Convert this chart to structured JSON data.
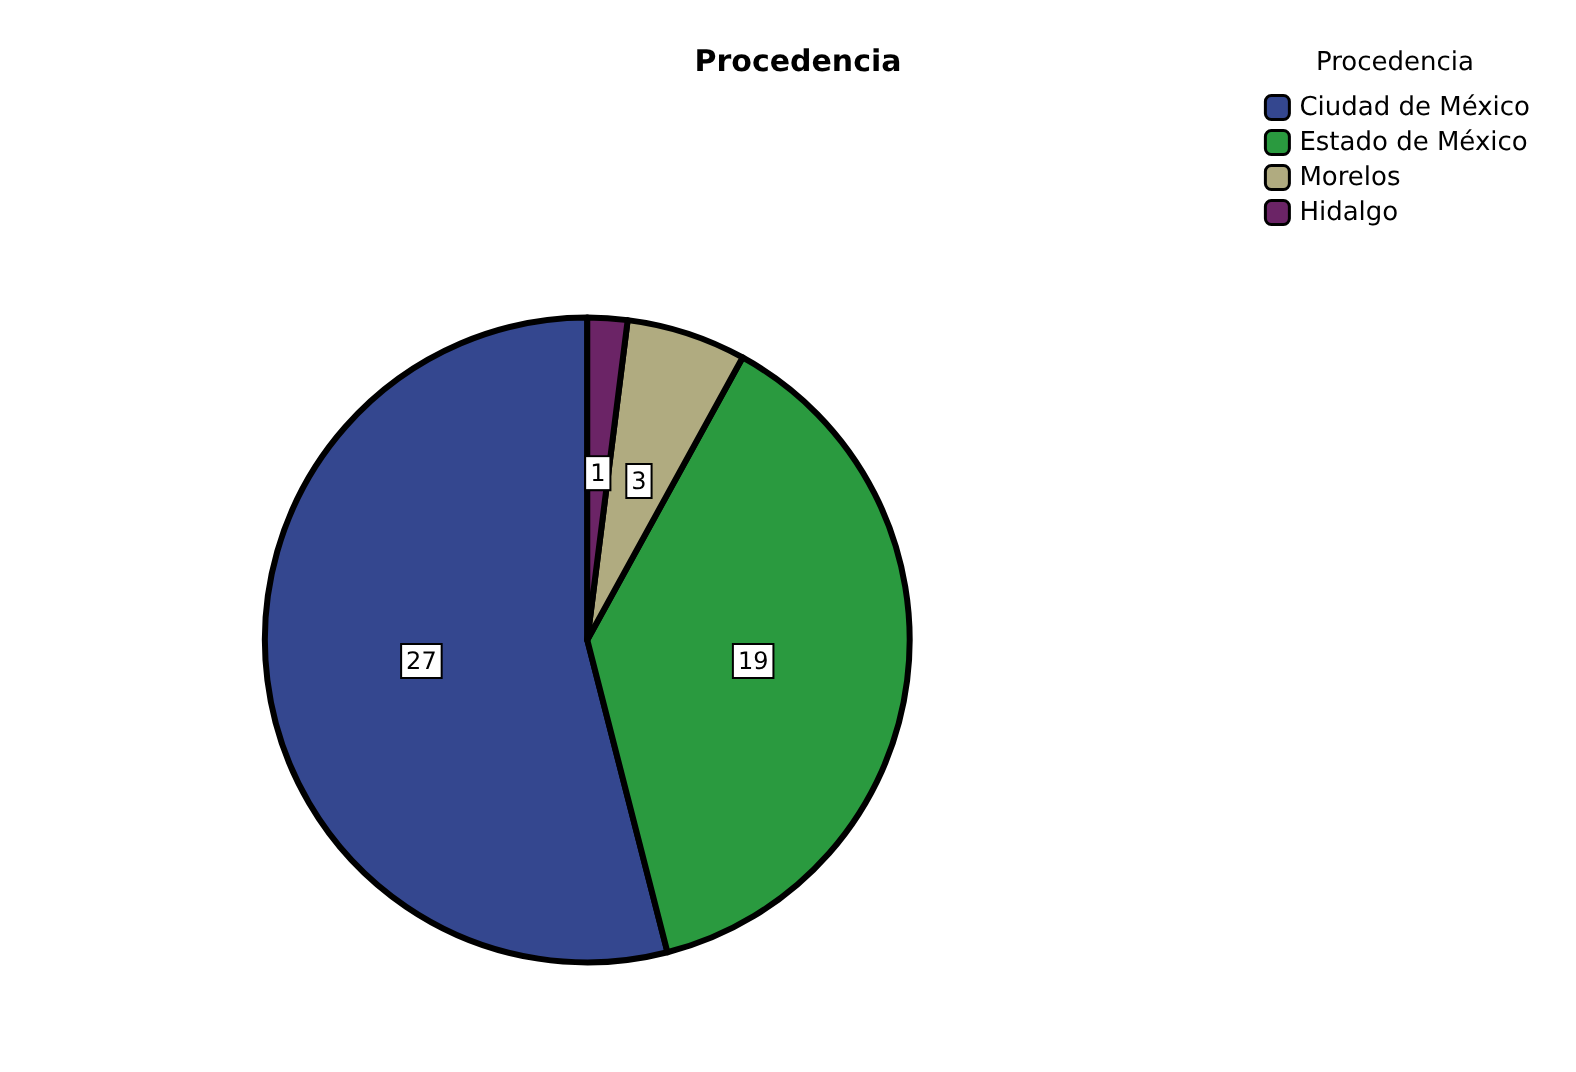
{
  "chart_data": {
    "type": "pie",
    "title": "Procedencia",
    "legend_title": "Procedencia",
    "categories": [
      "Ciudad de México",
      "Estado de México",
      "Morelos",
      "Hidalgo"
    ],
    "values": [
      27,
      19,
      3,
      1
    ],
    "colors": [
      "#34478f",
      "#2a9a3f",
      "#b0ab80",
      "#6b2466"
    ],
    "data_labels": true,
    "legend": "top right"
  }
}
